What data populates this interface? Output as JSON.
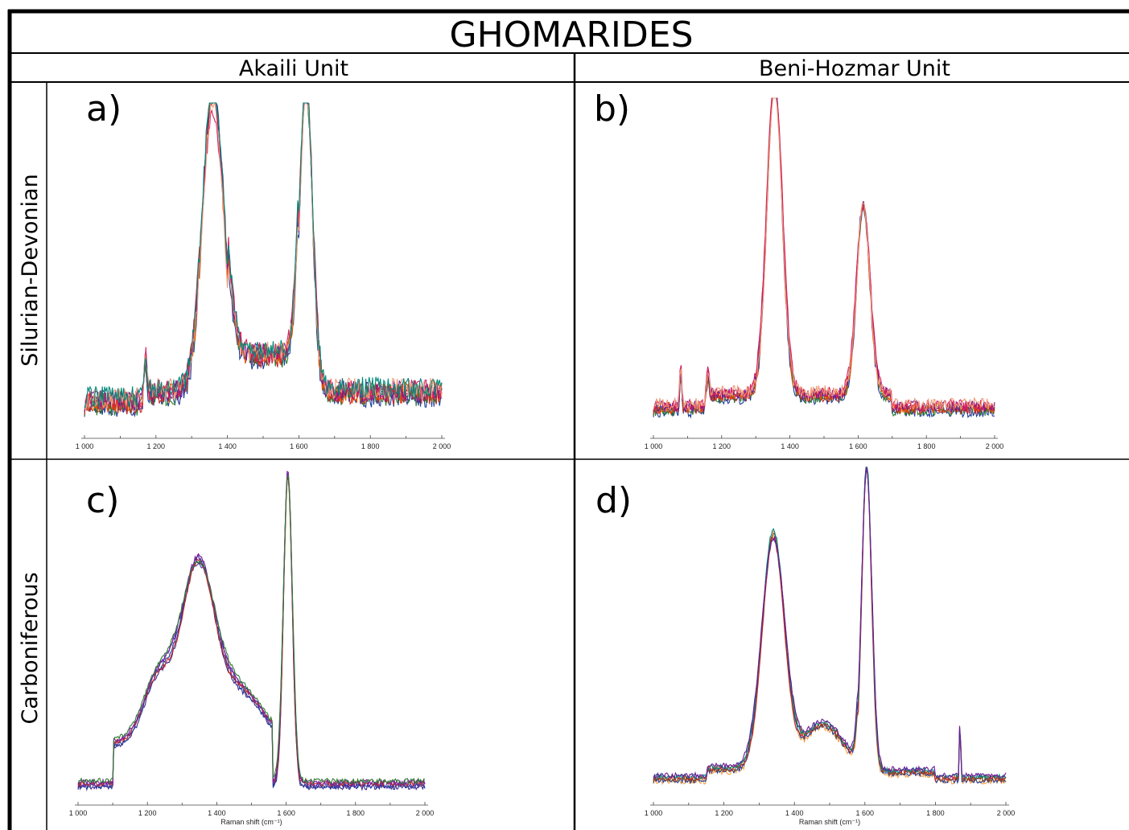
{
  "figure": {
    "title": "GHOMARIDES",
    "columns": [
      "Akaili Unit",
      "Beni-Hozmar Unit"
    ],
    "rows": [
      "Silurian-Devonian",
      "Carboniferous"
    ]
  },
  "chart_data": [
    {
      "type": "line",
      "panel": "a)",
      "xlim": [
        1000,
        2000
      ],
      "xticks": [
        1000,
        1200,
        1400,
        1600,
        1800,
        2000
      ],
      "tick_labels": [
        "1 000",
        "1 200",
        "1 400",
        "1 600",
        "1 800",
        "2 000"
      ],
      "xlabel": "",
      "ylabel": "",
      "peaks": [
        {
          "center": 1360,
          "height": 1.0,
          "width": 42
        },
        {
          "center": 1620,
          "height": 1.0,
          "width": 26
        },
        {
          "center": 1170,
          "height": 0.12,
          "width": 6
        }
      ],
      "series": [
        {
          "color": "#1f3d99",
          "scale": 1.0
        },
        {
          "color": "#2e7d32",
          "scale": 0.98
        },
        {
          "color": "#c62828",
          "scale": 0.96
        },
        {
          "color": "#e65100",
          "scale": 0.97
        },
        {
          "color": "#6a1b9a",
          "scale": 0.95
        },
        {
          "color": "#d81b60",
          "scale": 0.9
        },
        {
          "color": "#ef9a7a",
          "scale": 0.93
        },
        {
          "color": "#00897b",
          "scale": 0.99
        }
      ]
    },
    {
      "type": "line",
      "panel": "b)",
      "xlim": [
        1000,
        2000
      ],
      "xticks": [
        1000,
        1200,
        1400,
        1600,
        1800,
        2000
      ],
      "tick_labels": [
        "1 000",
        "1 200",
        "1 400",
        "1 600",
        "1 800",
        "2 000"
      ],
      "xlabel": "",
      "ylabel": "",
      "peaks": [
        {
          "center": 1355,
          "height": 1.0,
          "width": 32
        },
        {
          "center": 1615,
          "height": 0.6,
          "width": 28
        },
        {
          "center": 1080,
          "height": 0.12,
          "width": 4
        },
        {
          "center": 1160,
          "height": 0.07,
          "width": 5
        }
      ],
      "series": [
        {
          "color": "#1f3d99",
          "scale": 1.0
        },
        {
          "color": "#2e7d32",
          "scale": 0.99
        },
        {
          "color": "#c62828",
          "scale": 1.0
        },
        {
          "color": "#e65100",
          "scale": 0.98
        },
        {
          "color": "#6a1b9a",
          "scale": 0.99
        },
        {
          "color": "#d81b60",
          "scale": 0.97
        },
        {
          "color": "#ef9a7a",
          "scale": 0.96
        }
      ]
    },
    {
      "type": "line",
      "panel": "c)",
      "xlim": [
        1000,
        2000
      ],
      "xticks": [
        1000,
        1200,
        1400,
        1600,
        1800,
        2000
      ],
      "tick_labels": [
        "1 000",
        "1 200",
        "1 400",
        "1 600",
        "1 800",
        "2 000"
      ],
      "xlabel": "Raman shift (cm⁻¹)",
      "ylabel": "",
      "peaks": [
        {
          "center": 1345,
          "height": 0.57,
          "width": 70
        },
        {
          "center": 1605,
          "height": 1.0,
          "width": 18
        },
        {
          "center": 1230,
          "height": 0.2,
          "width": 60
        }
      ],
      "series": [
        {
          "color": "#3a2a8a",
          "scale": 1.0
        },
        {
          "color": "#1f3d99",
          "scale": 0.97
        },
        {
          "color": "#5e35b1",
          "scale": 0.95
        },
        {
          "color": "#c62828",
          "scale": 0.96
        },
        {
          "color": "#7b1fa2",
          "scale": 0.98
        },
        {
          "color": "#2e7d32",
          "scale": 0.94
        }
      ]
    },
    {
      "type": "line",
      "panel": "d)",
      "xlim": [
        1000,
        2000
      ],
      "xticks": [
        1000,
        1200,
        1400,
        1600,
        1800,
        2000
      ],
      "tick_labels": [
        "1 000",
        "1 200",
        "1 400",
        "1 600",
        "1 800",
        "2 000"
      ],
      "xlabel": "Raman shift (cm⁻¹)",
      "ylabel": "",
      "peaks": [
        {
          "center": 1340,
          "height": 0.75,
          "width": 45
        },
        {
          "center": 1605,
          "height": 1.0,
          "width": 20
        },
        {
          "center": 1870,
          "height": 0.24,
          "width": 2
        }
      ],
      "series": [
        {
          "color": "#f4a04a",
          "scale": 1.0
        },
        {
          "color": "#1f3d99",
          "scale": 0.97
        },
        {
          "color": "#8b4513",
          "scale": 0.98
        },
        {
          "color": "#c62828",
          "scale": 0.96
        },
        {
          "color": "#00897b",
          "scale": 0.99
        },
        {
          "color": "#6a1b9a",
          "scale": 0.95
        }
      ]
    }
  ]
}
